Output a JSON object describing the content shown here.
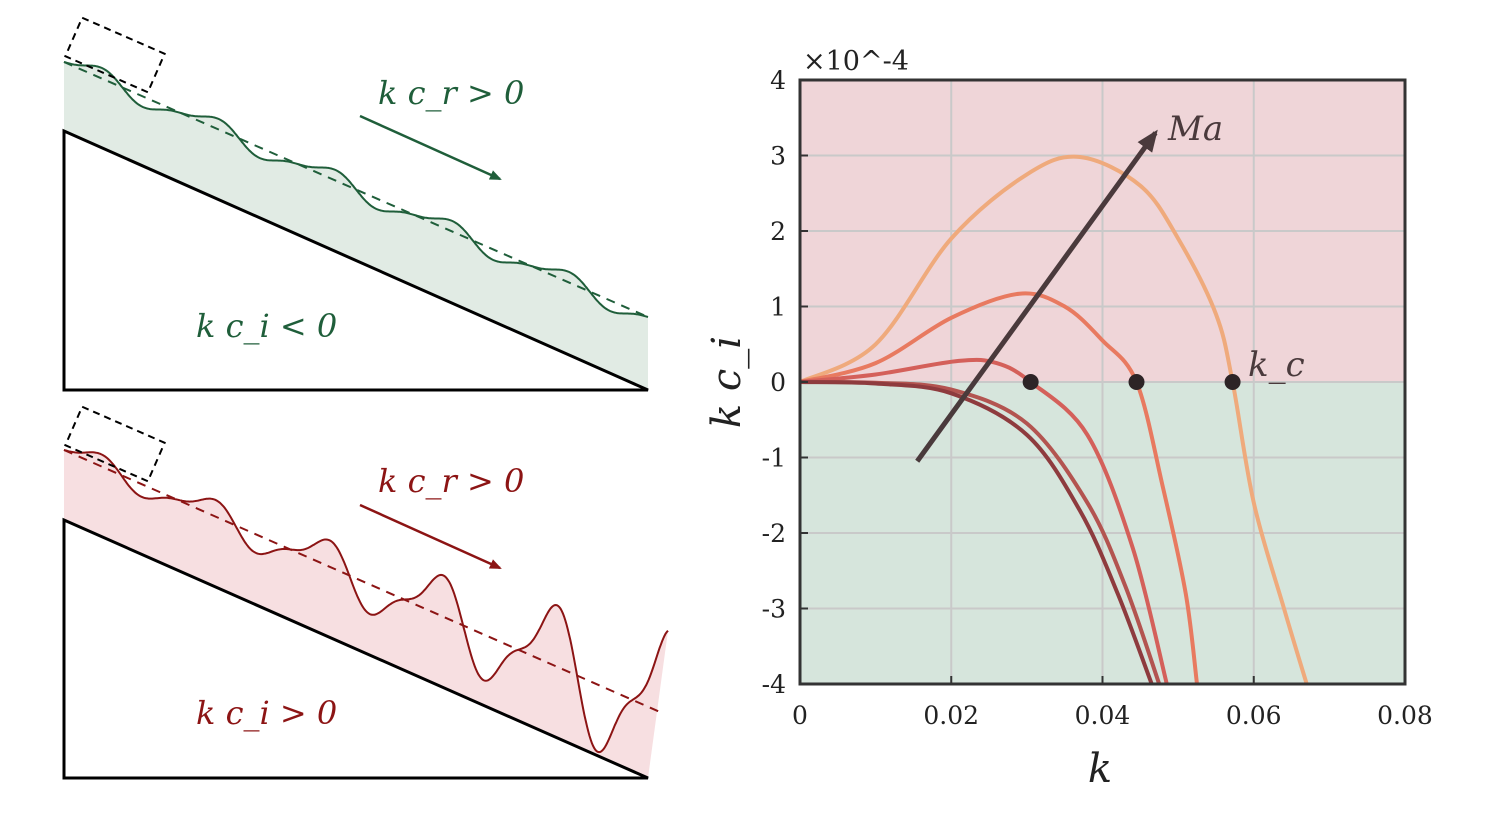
{
  "sketches": {
    "top": {
      "kcr_label": "k c_r > 0",
      "kci_label": "k c_i < 0",
      "color": "#1f5e3a",
      "fill": "#e1ebe4"
    },
    "bottom": {
      "kcr_label": "k c_r > 0",
      "kci_label": "k c_i > 0",
      "color": "#8c1414",
      "fill": "#f7dfe1"
    }
  },
  "chart_data": {
    "type": "line",
    "xlabel": "k",
    "ylabel": "k c_i",
    "y_exponent": "×10^-4",
    "xlim": [
      0,
      0.08
    ],
    "ylim": [
      -4,
      4
    ],
    "xticks": [
      "0",
      "0.02",
      "0.04",
      "0.06",
      "0.08"
    ],
    "yticks": [
      "4",
      "3",
      "2",
      "1",
      "0",
      "-1",
      "-2",
      "-3",
      "-4"
    ],
    "grid": true,
    "background": {
      "unstable": "#efd5d8",
      "stable": "#d6e5dc"
    },
    "series": [
      {
        "color": "#efaa7c",
        "points": [
          [
            0,
            0
          ],
          [
            0.01,
            0.5
          ],
          [
            0.02,
            1.9
          ],
          [
            0.03,
            2.75
          ],
          [
            0.037,
            2.98
          ],
          [
            0.045,
            2.6
          ],
          [
            0.05,
            1.9
          ],
          [
            0.055,
            0.9
          ],
          [
            0.0572,
            0
          ],
          [
            0.06,
            -1.6
          ],
          [
            0.064,
            -3.0
          ],
          [
            0.067,
            -4.0
          ]
        ]
      },
      {
        "color": "#e87a60",
        "points": [
          [
            0,
            0
          ],
          [
            0.01,
            0.25
          ],
          [
            0.02,
            0.85
          ],
          [
            0.029,
            1.17
          ],
          [
            0.035,
            1.0
          ],
          [
            0.04,
            0.55
          ],
          [
            0.0445,
            0
          ],
          [
            0.048,
            -1.4
          ],
          [
            0.051,
            -2.8
          ],
          [
            0.0525,
            -4.0
          ]
        ]
      },
      {
        "color": "#d4605a",
        "points": [
          [
            0,
            0
          ],
          [
            0.01,
            0.1
          ],
          [
            0.021,
            0.28
          ],
          [
            0.026,
            0.25
          ],
          [
            0.0305,
            0
          ],
          [
            0.038,
            -0.7
          ],
          [
            0.044,
            -2.2
          ],
          [
            0.0485,
            -4.0
          ]
        ]
      },
      {
        "color": "#b35450",
        "points": [
          [
            0,
            0
          ],
          [
            0.01,
            -0.01
          ],
          [
            0.02,
            -0.1
          ],
          [
            0.03,
            -0.55
          ],
          [
            0.038,
            -1.6
          ],
          [
            0.043,
            -2.7
          ],
          [
            0.0475,
            -4.0
          ]
        ]
      },
      {
        "color": "#8e3b3e",
        "points": [
          [
            0,
            0
          ],
          [
            0.01,
            -0.02
          ],
          [
            0.02,
            -0.15
          ],
          [
            0.03,
            -0.7
          ],
          [
            0.037,
            -1.7
          ],
          [
            0.042,
            -2.8
          ],
          [
            0.0465,
            -4.0
          ]
        ]
      }
    ],
    "critical_points": [
      0.0305,
      0.0445,
      0.0572
    ],
    "critical_label": "k_c",
    "arrow": {
      "from": [
        0.0155,
        -1.05
      ],
      "to": [
        0.047,
        3.3
      ],
      "label": "Ma"
    }
  }
}
